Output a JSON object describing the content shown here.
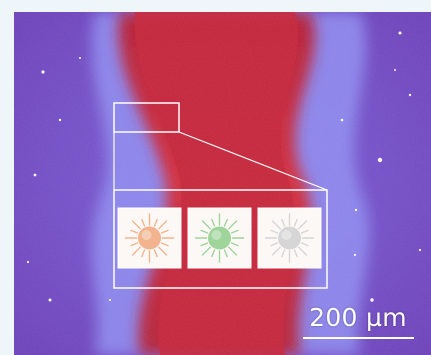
{
  "figure": {
    "scale_label": "200 µm"
  },
  "inset_tiles": [
    {
      "icon": "sun-icon",
      "color": "#f2b48e"
    },
    {
      "icon": "sun-icon",
      "color": "#9fd49a"
    },
    {
      "icon": "sun-icon",
      "color": "#d6d6d6"
    }
  ]
}
